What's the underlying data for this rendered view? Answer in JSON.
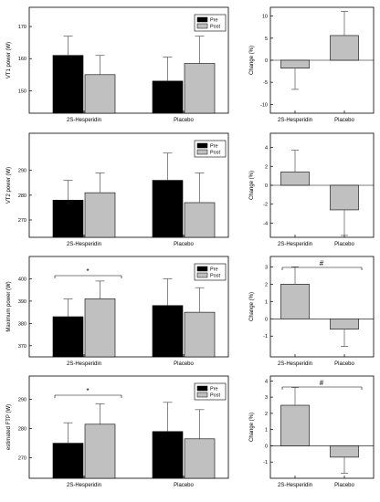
{
  "colors": {
    "pre": "#000000",
    "post": "#c0c0c0",
    "change": "#c0c0c0"
  },
  "chart_data": [
    {
      "type": "bar",
      "ylabel": "VT1 power (W)",
      "categories": [
        "2S-Hesperidin",
        "Placebo"
      ],
      "series": [
        {
          "name": "Pre",
          "values": [
            161,
            153
          ],
          "error": [
            6,
            7.5
          ]
        },
        {
          "name": "Post",
          "values": [
            155,
            158.5
          ],
          "error": [
            6,
            8.5
          ]
        }
      ],
      "ylim": [
        143,
        176
      ],
      "yticks": [
        150,
        160,
        170
      ],
      "legend": "top-right",
      "annotation": null,
      "grid": false
    },
    {
      "type": "bar",
      "ylabel": "Change (%)",
      "categories": [
        "2S-Hesperidin",
        "Placebo"
      ],
      "values": [
        -1.8,
        5.6
      ],
      "error": [
        4.8,
        5.5
      ],
      "ylim": [
        -12,
        12
      ],
      "yticks": [
        -10,
        -5,
        0,
        5,
        10
      ],
      "annotation": null,
      "grid": false
    },
    {
      "type": "bar",
      "ylabel": "VT2 power (W)",
      "categories": [
        "2S-Hesperidin",
        "Placebo"
      ],
      "series": [
        {
          "name": "Pre",
          "values": [
            278,
            286
          ],
          "error": [
            8,
            11
          ]
        },
        {
          "name": "Post",
          "values": [
            281,
            277
          ],
          "error": [
            8,
            12
          ]
        }
      ],
      "ylim": [
        263,
        305
      ],
      "yticks": [
        270,
        280,
        290
      ],
      "legend": "top-right",
      "annotation": null,
      "grid": false
    },
    {
      "type": "bar",
      "ylabel": "Change (%)",
      "categories": [
        "2S-Hesperidin",
        "Placebo"
      ],
      "values": [
        1.4,
        -2.6
      ],
      "error": [
        2.3,
        2.7
      ],
      "ylim": [
        -5.5,
        5.5
      ],
      "yticks": [
        -4,
        -2,
        0,
        2,
        4
      ],
      "annotation": null,
      "grid": false
    },
    {
      "type": "bar",
      "ylabel": "Maximum power (W)",
      "categories": [
        "2S-Hesperidin",
        "Placebo"
      ],
      "series": [
        {
          "name": "Pre",
          "values": [
            383,
            388
          ],
          "error": [
            8,
            12
          ]
        },
        {
          "name": "Post",
          "values": [
            391,
            385
          ],
          "error": [
            8,
            11
          ]
        }
      ],
      "ylim": [
        365,
        410
      ],
      "yticks": [
        370,
        380,
        390,
        400
      ],
      "legend": "top-right",
      "annotation": "*",
      "grid": false
    },
    {
      "type": "bar",
      "ylabel": "Change (%)",
      "categories": [
        "2S-Hesperidin",
        "Placebo"
      ],
      "values": [
        2.0,
        -0.6
      ],
      "error": [
        1.0,
        1.0
      ],
      "ylim": [
        -2.2,
        3.6
      ],
      "yticks": [
        -1,
        0,
        1,
        2,
        3
      ],
      "annotation": "#",
      "grid": false
    },
    {
      "type": "bar",
      "ylabel": "estimated FTP (W)",
      "categories": [
        "2S-Hesperidin",
        "Placebo"
      ],
      "series": [
        {
          "name": "Pre",
          "values": [
            275,
            279
          ],
          "error": [
            7,
            10
          ]
        },
        {
          "name": "Post",
          "values": [
            281.5,
            276.5
          ],
          "error": [
            7,
            10
          ]
        }
      ],
      "ylim": [
        263,
        298
      ],
      "yticks": [
        270,
        280,
        290
      ],
      "legend": "top-right",
      "annotation": "*",
      "grid": false
    },
    {
      "type": "bar",
      "ylabel": "Change (%)",
      "categories": [
        "2S-Hesperidin",
        "Placebo"
      ],
      "values": [
        2.5,
        -0.7
      ],
      "error": [
        1.1,
        1.0
      ],
      "ylim": [
        -2.0,
        4.3
      ],
      "yticks": [
        -1,
        0,
        1,
        2,
        3,
        4
      ],
      "annotation": "#",
      "grid": false
    }
  ]
}
